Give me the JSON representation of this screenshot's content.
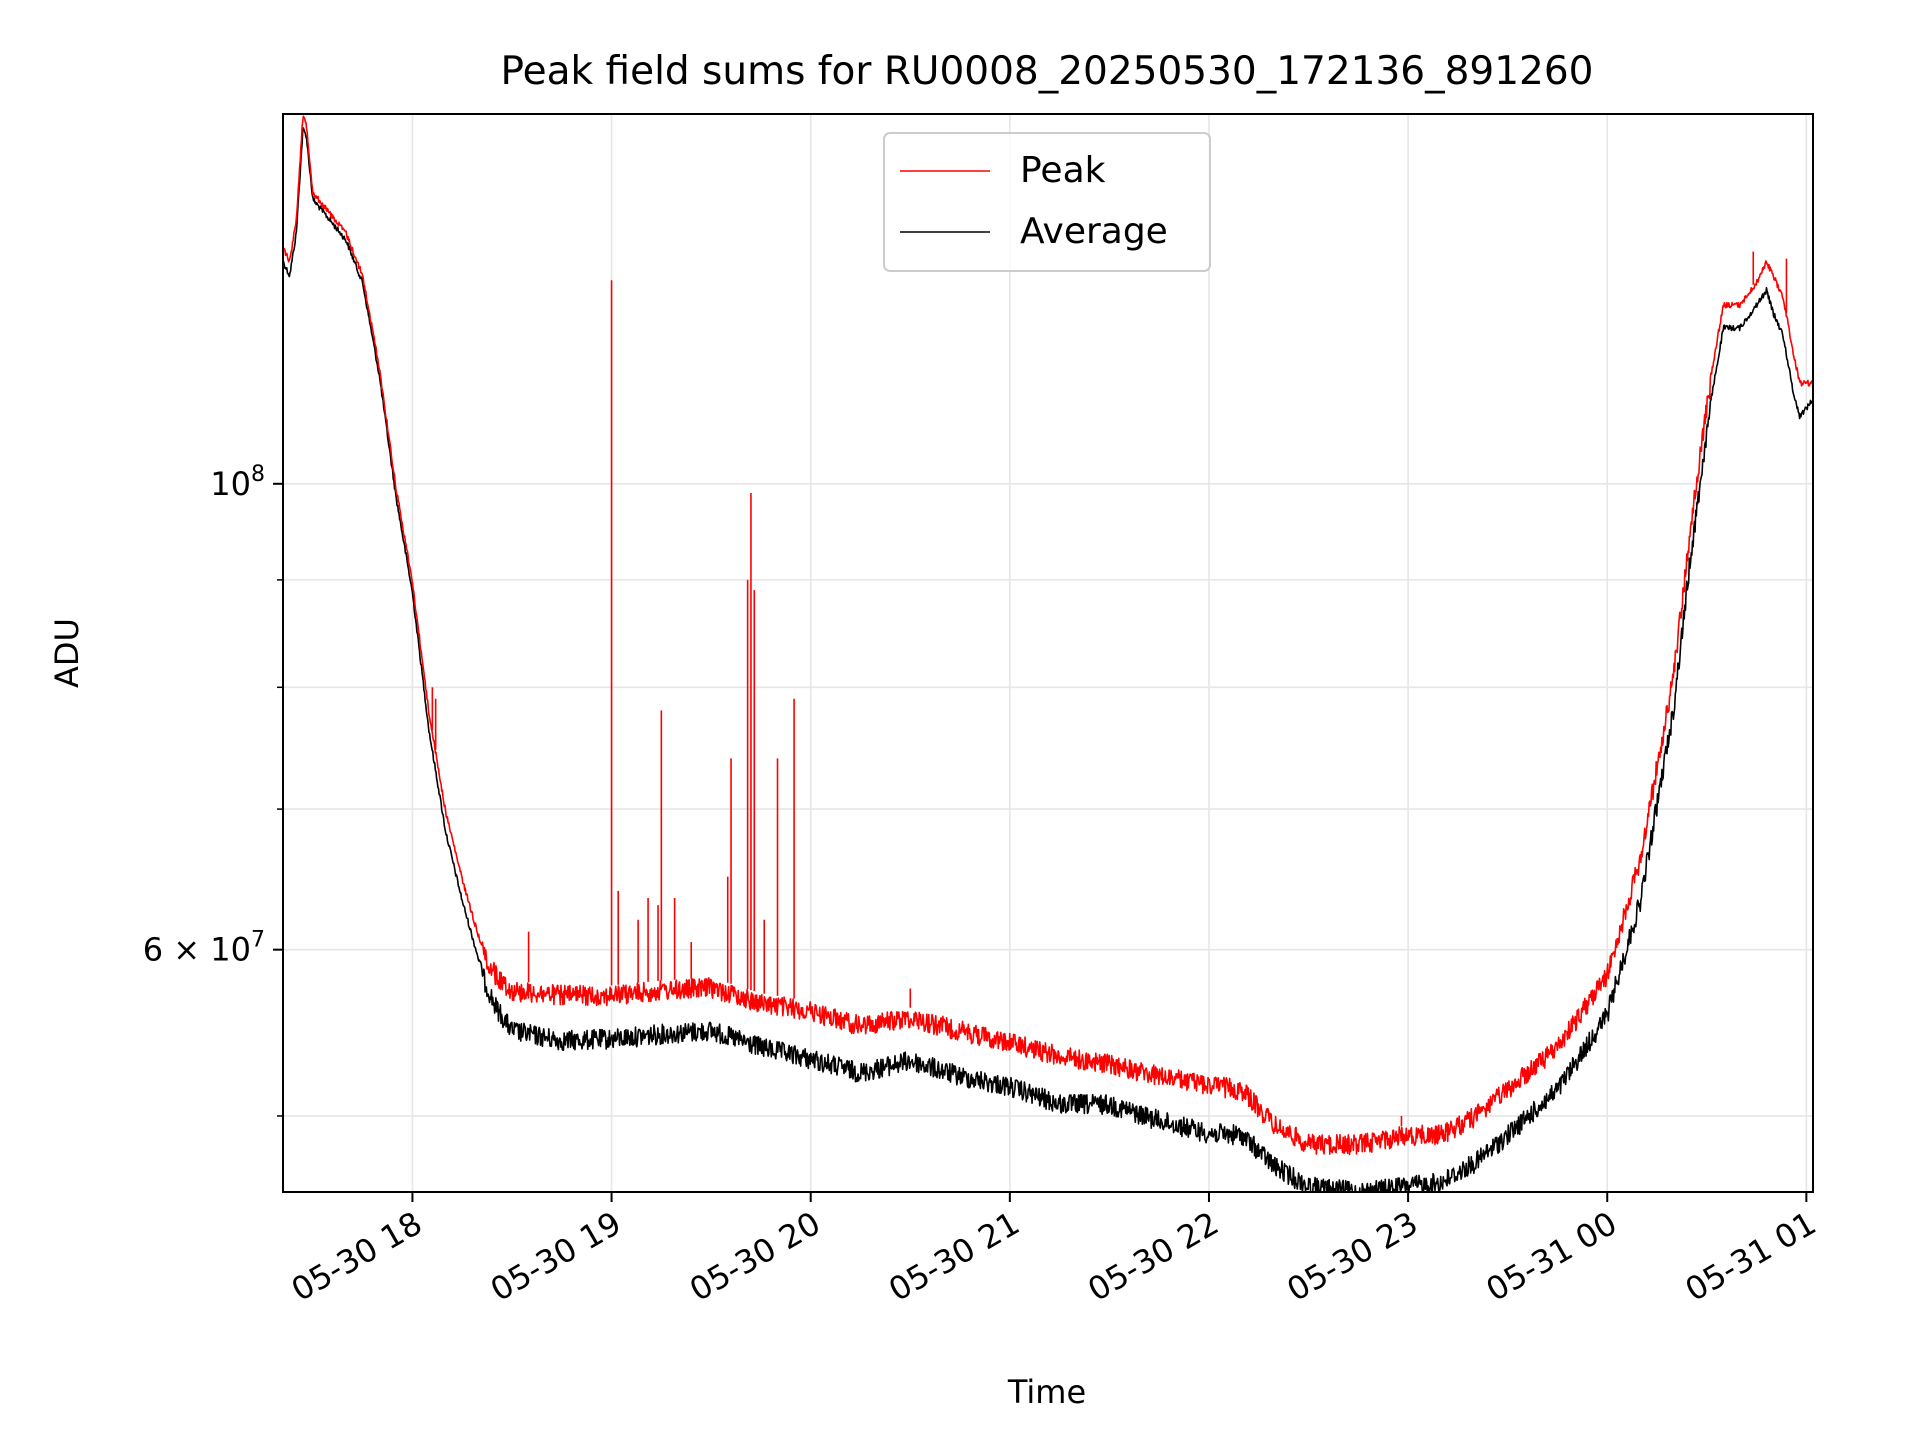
{
  "chart_data": {
    "type": "line",
    "title": "Peak field sums for RU0008_20250530_172136_891260",
    "xlabel": "Time",
    "ylabel": "ADU",
    "yscale": "log",
    "xlim": [
      "2025-05-30 17:21",
      "2025-05-31 01:02"
    ],
    "ylim": [
      46000000,
      150000000
    ],
    "grid": true,
    "legend": {
      "placement": "top-center"
    },
    "x_ticks": [
      {
        "value": "2025-05-30 18:00",
        "label": "05-30 18"
      },
      {
        "value": "2025-05-30 19:00",
        "label": "05-30 19"
      },
      {
        "value": "2025-05-30 20:00",
        "label": "05-30 20"
      },
      {
        "value": "2025-05-30 21:00",
        "label": "05-30 21"
      },
      {
        "value": "2025-05-30 22:00",
        "label": "05-30 22"
      },
      {
        "value": "2025-05-30 23:00",
        "label": "05-30 23"
      },
      {
        "value": "2025-05-31 00:00",
        "label": "05-31 00"
      },
      {
        "value": "2025-05-31 01:00",
        "label": "05-31 01"
      }
    ],
    "y_major_ticks": [
      {
        "value": 100000000,
        "label_base": "10",
        "label_exp": "8"
      },
      {
        "value": 60000000,
        "label_base": "6 × 10",
        "label_exp": "7"
      }
    ],
    "y_minor_gridlines": [
      50000000,
      70000000,
      80000000,
      90000000
    ],
    "series": [
      {
        "name": "Peak",
        "color": "#ff0000",
        "points": [
          [
            "2025-05-30 17:21",
            130000000
          ],
          [
            "2025-05-30 17:23",
            128000000
          ],
          [
            "2025-05-30 17:25",
            134000000
          ],
          [
            "2025-05-30 17:27",
            150000000
          ],
          [
            "2025-05-30 17:28",
            149000000
          ],
          [
            "2025-05-30 17:30",
            138000000
          ],
          [
            "2025-05-30 17:35",
            135000000
          ],
          [
            "2025-05-30 17:40",
            132000000
          ],
          [
            "2025-05-30 17:45",
            126000000
          ],
          [
            "2025-05-30 17:50",
            114000000
          ],
          [
            "2025-05-30 17:55",
            100000000
          ],
          [
            "2025-05-30 18:00",
            90000000
          ],
          [
            "2025-05-30 18:05",
            78000000
          ],
          [
            "2025-05-30 18:10",
            70000000
          ],
          [
            "2025-05-30 18:15",
            65000000
          ],
          [
            "2025-05-30 18:20",
            61000000
          ],
          [
            "2025-05-30 18:25",
            59000000
          ],
          [
            "2025-05-30 18:30",
            58000000
          ],
          [
            "2025-05-30 18:45",
            57700000
          ],
          [
            "2025-05-30 19:00",
            57700000
          ],
          [
            "2025-05-30 19:15",
            58000000
          ],
          [
            "2025-05-30 19:30",
            58200000
          ],
          [
            "2025-05-30 19:45",
            57200000
          ],
          [
            "2025-05-30 20:00",
            56700000
          ],
          [
            "2025-05-30 20:15",
            55800000
          ],
          [
            "2025-05-30 20:30",
            56300000
          ],
          [
            "2025-05-30 20:45",
            55500000
          ],
          [
            "2025-05-30 21:00",
            54800000
          ],
          [
            "2025-05-30 21:15",
            54000000
          ],
          [
            "2025-05-30 21:30",
            53500000
          ],
          [
            "2025-05-30 21:45",
            52800000
          ],
          [
            "2025-05-30 22:00",
            52300000
          ],
          [
            "2025-05-30 22:10",
            52000000
          ],
          [
            "2025-05-30 22:20",
            50000000
          ],
          [
            "2025-05-30 22:30",
            49000000
          ],
          [
            "2025-05-30 22:45",
            49000000
          ],
          [
            "2025-05-30 23:00",
            49500000
          ],
          [
            "2025-05-30 23:10",
            49500000
          ],
          [
            "2025-05-30 23:20",
            50500000
          ],
          [
            "2025-05-30 23:30",
            52000000
          ],
          [
            "2025-05-30 23:45",
            54500000
          ],
          [
            "2025-05-31 00:00",
            59000000
          ],
          [
            "2025-05-31 00:10",
            67000000
          ],
          [
            "2025-05-31 00:20",
            82000000
          ],
          [
            "2025-05-31 00:25",
            96000000
          ],
          [
            "2025-05-31 00:30",
            110000000
          ],
          [
            "2025-05-31 00:35",
            122000000
          ],
          [
            "2025-05-31 00:40",
            122000000
          ],
          [
            "2025-05-31 00:45",
            125000000
          ],
          [
            "2025-05-31 00:48",
            128000000
          ],
          [
            "2025-05-31 00:50",
            126000000
          ],
          [
            "2025-05-31 00:53",
            123000000
          ],
          [
            "2025-05-31 00:56",
            116000000
          ],
          [
            "2025-05-31 00:58",
            112000000
          ],
          [
            "2025-05-31 01:02",
            112000000
          ]
        ],
        "spikes": [
          [
            "2025-05-30 18:06",
            80000000
          ],
          [
            "2025-05-30 18:07",
            79000000
          ],
          [
            "2025-05-30 18:35",
            61200000
          ],
          [
            "2025-05-30 19:00",
            125000000
          ],
          [
            "2025-05-30 19:02",
            64000000
          ],
          [
            "2025-05-30 19:08",
            62000000
          ],
          [
            "2025-05-30 19:11",
            63500000
          ],
          [
            "2025-05-30 19:14",
            63000000
          ],
          [
            "2025-05-30 19:15",
            78000000
          ],
          [
            "2025-05-30 19:19",
            63500000
          ],
          [
            "2025-05-30 19:24",
            60500000
          ],
          [
            "2025-05-30 19:35",
            65000000
          ],
          [
            "2025-05-30 19:36",
            74000000
          ],
          [
            "2025-05-30 19:41",
            90000000
          ],
          [
            "2025-05-30 19:42",
            99000000
          ],
          [
            "2025-05-30 19:43",
            89000000
          ],
          [
            "2025-05-30 19:46",
            62000000
          ],
          [
            "2025-05-30 19:50",
            74000000
          ],
          [
            "2025-05-30 19:55",
            79000000
          ],
          [
            "2025-05-30 20:30",
            57500000
          ],
          [
            "2025-05-30 22:58",
            50000000
          ],
          [
            "2025-05-31 00:44",
            129000000
          ],
          [
            "2025-05-31 00:54",
            128000000
          ]
        ]
      },
      {
        "name": "Average",
        "color": "#000000",
        "points": [
          [
            "2025-05-30 17:21",
            128000000
          ],
          [
            "2025-05-30 17:23",
            126000000
          ],
          [
            "2025-05-30 17:25",
            132000000
          ],
          [
            "2025-05-30 17:27",
            148000000
          ],
          [
            "2025-05-30 17:28",
            147000000
          ],
          [
            "2025-05-30 17:30",
            137000000
          ],
          [
            "2025-05-30 17:35",
            134000000
          ],
          [
            "2025-05-30 17:40",
            131000000
          ],
          [
            "2025-05-30 17:45",
            125000000
          ],
          [
            "2025-05-30 17:50",
            113000000
          ],
          [
            "2025-05-30 17:55",
            99000000
          ],
          [
            "2025-05-30 18:00",
            89000000
          ],
          [
            "2025-05-30 18:05",
            76500000
          ],
          [
            "2025-05-30 18:10",
            68500000
          ],
          [
            "2025-05-30 18:15",
            63500000
          ],
          [
            "2025-05-30 18:20",
            59500000
          ],
          [
            "2025-05-30 18:25",
            57000000
          ],
          [
            "2025-05-30 18:30",
            55500000
          ],
          [
            "2025-05-30 18:45",
            54900000
          ],
          [
            "2025-05-30 19:00",
            55000000
          ],
          [
            "2025-05-30 19:15",
            55300000
          ],
          [
            "2025-05-30 19:30",
            55500000
          ],
          [
            "2025-05-30 19:45",
            54500000
          ],
          [
            "2025-05-30 20:00",
            53800000
          ],
          [
            "2025-05-30 20:15",
            53000000
          ],
          [
            "2025-05-30 20:30",
            53700000
          ],
          [
            "2025-05-30 20:45",
            52800000
          ],
          [
            "2025-05-30 21:00",
            52200000
          ],
          [
            "2025-05-30 21:15",
            51200000
          ],
          [
            "2025-05-30 21:30",
            51200000
          ],
          [
            "2025-05-30 21:45",
            50300000
          ],
          [
            "2025-05-30 22:00",
            49600000
          ],
          [
            "2025-05-30 22:10",
            49500000
          ],
          [
            "2025-05-30 22:20",
            47800000
          ],
          [
            "2025-05-30 22:30",
            46800000
          ],
          [
            "2025-05-30 22:45",
            46500000
          ],
          [
            "2025-05-30 23:00",
            46800000
          ],
          [
            "2025-05-30 23:10",
            47000000
          ],
          [
            "2025-05-30 23:20",
            48000000
          ],
          [
            "2025-05-30 23:30",
            49500000
          ],
          [
            "2025-05-30 23:45",
            52000000
          ],
          [
            "2025-05-31 00:00",
            56500000
          ],
          [
            "2025-05-31 00:10",
            64000000
          ],
          [
            "2025-05-31 00:20",
            79000000
          ],
          [
            "2025-05-31 00:25",
            93000000
          ],
          [
            "2025-05-31 00:30",
            107000000
          ],
          [
            "2025-05-31 00:35",
            119000000
          ],
          [
            "2025-05-31 00:40",
            119000000
          ],
          [
            "2025-05-31 00:45",
            122000000
          ],
          [
            "2025-05-31 00:48",
            124000000
          ],
          [
            "2025-05-31 00:50",
            121000000
          ],
          [
            "2025-05-31 00:53",
            118000000
          ],
          [
            "2025-05-31 00:56",
            111000000
          ],
          [
            "2025-05-31 00:58",
            108000000
          ],
          [
            "2025-05-31 01:02",
            110000000
          ]
        ]
      }
    ]
  }
}
